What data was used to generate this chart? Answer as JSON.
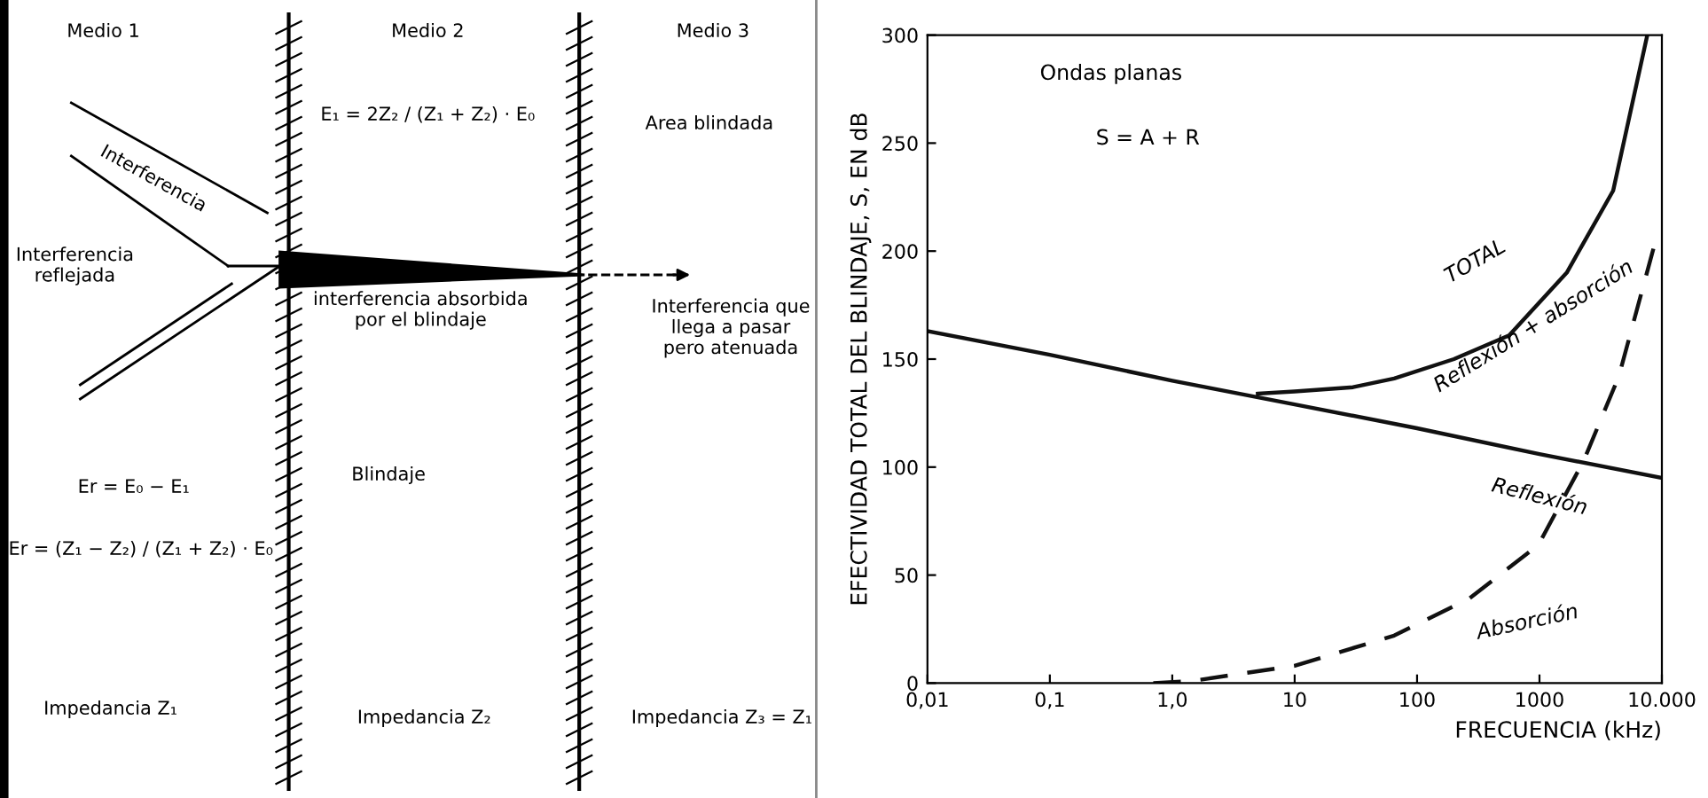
{
  "chart_data": [
    {
      "type": "other",
      "annotations": [
        "Medio 1",
        "Medio 2",
        "Medio 3",
        "Interferencia",
        "Interferencia\nreflejada",
        "E₁ = 2Z₂ / (Z₁ + Z₂) · E₀",
        "Area blindada",
        "interferencia absorbida\npor el blindaje",
        "Interferencia que\nllega a pasar\npero atenuada",
        "Er = E₀ − E₁",
        "Er = (Z₁ − Z₂) / (Z₁ + Z₂) · E₀",
        "Blindaje",
        "Impedancia Z₁",
        "Impedancia Z₂",
        "Impedancia Z₃ = Z₁"
      ]
    },
    {
      "type": "line",
      "xlabel": "FRECUENCIA (kHz)",
      "ylabel": "EFECTIVIDAD TOTAL DEL BLINDAJE, S, EN dB",
      "log": "x",
      "xlim": [
        0.01,
        10000
      ],
      "xticks": [
        {
          "value": 0.01,
          "label": "0,01"
        },
        {
          "value": 0.1,
          "label": "0,1"
        },
        {
          "value": 1,
          "label": "1,0"
        },
        10,
        100,
        1000,
        {
          "value": 10000,
          "label": "10.000"
        }
      ],
      "ylim": [
        0,
        300
      ],
      "yticks": [
        0,
        50,
        100,
        150,
        200,
        250,
        300
      ],
      "grid": false,
      "legend": false,
      "annotations": [
        "Ondas planas",
        "S = A + R",
        "Reflexión + absorción"
      ],
      "series": [
        {
          "name": "Reflexión",
          "color": "#111111",
          "line_style": "solid",
          "x": [
            0.01,
            0.1,
            1,
            10,
            100,
            1000,
            10000
          ],
          "values": [
            163,
            152,
            140,
            129,
            118,
            106,
            95
          ]
        },
        {
          "name": "TOTAL",
          "color": "#111111",
          "line_style": "solid",
          "x": [
            5,
            10,
            30,
            65,
            200,
            565,
            1670,
            4000,
            7600
          ],
          "values": [
            134,
            135,
            137,
            141,
            150,
            161,
            190,
            228,
            300
          ]
        },
        {
          "name": "Absorción",
          "color": "#111111",
          "line_style": "dashed",
          "x": [
            0.7,
            1.46,
            10,
            65,
            265,
            980,
            2300,
            4450,
            8900
          ],
          "values": [
            0,
            1,
            8,
            22,
            39,
            64,
            103,
            142,
            205
          ]
        }
      ]
    }
  ]
}
